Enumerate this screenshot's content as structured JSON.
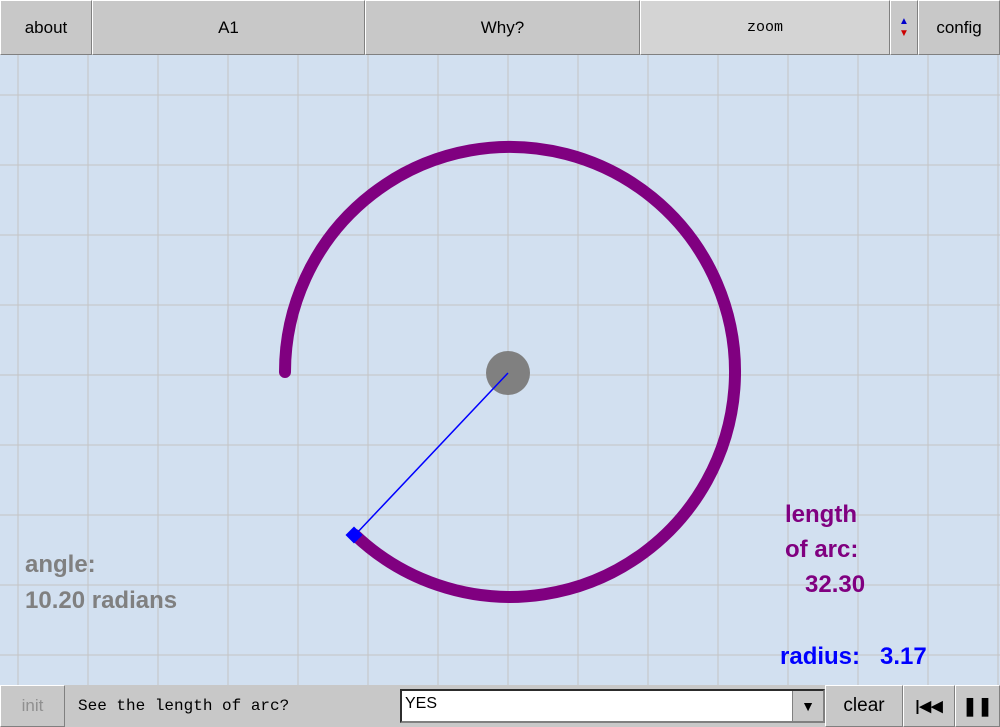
{
  "toolbar": {
    "buttons": [
      "about",
      "A1",
      "Why?",
      "zoom",
      "config"
    ]
  },
  "canvas": {
    "length_label_1": "length",
    "length_label_2": "of arc:",
    "length_value": "32.30",
    "radius_label": "radius:",
    "radius_value": "3.17",
    "angle_label": "angle:",
    "angle_value": "10.20 radians"
  },
  "bottom_bar": {
    "init": "init",
    "prompt": "See the length of arc?",
    "select_value": "YES",
    "clear": "clear"
  }
}
